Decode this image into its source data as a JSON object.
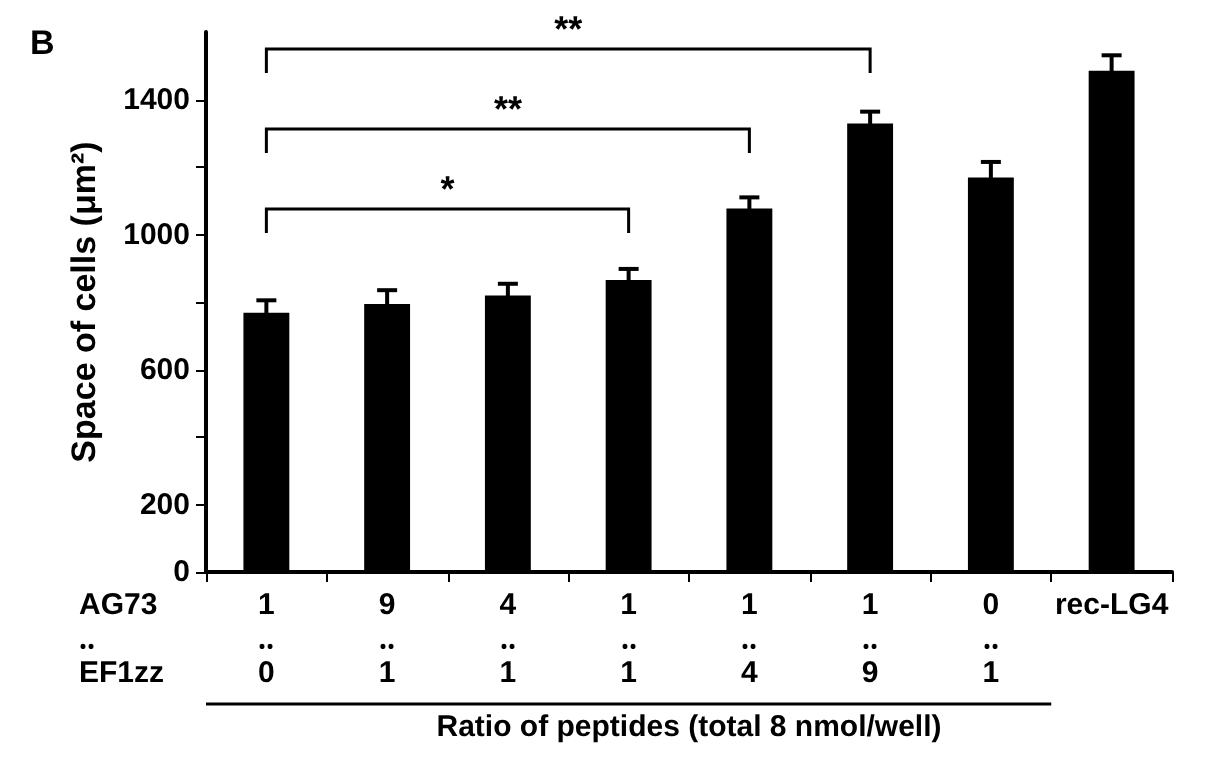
{
  "chart_data": {
    "type": "bar",
    "title": "B",
    "ylabel": "Space of cells (μm²)",
    "xlabel": "Ratio of peptides (total 8 nmol/well)",
    "categories": [
      "1\n‥\n0",
      "9\n‥\n1",
      "4\n‥\n1",
      "1\n‥\n1",
      "1\n‥\n4",
      "1\n‥\n9",
      "0\n‥\n1",
      "rec-LG4"
    ],
    "values": [
      768,
      794,
      819,
      865,
      1077,
      1329,
      1169,
      1485
    ],
    "errors": [
      37,
      41,
      35,
      33,
      33,
      35,
      46,
      46
    ],
    "color": "#000000",
    "ylim": [
      0,
      1600
    ],
    "yticks": [
      0,
      200,
      {
        "value": 400,
        "label": null
      },
      600,
      {
        "value": 800,
        "label": null
      },
      1000,
      {
        "value": 1200,
        "label": null
      },
      1400
    ],
    "grid": false,
    "annotations": [
      "AG73\n‥\nEF1zz",
      "*",
      "**",
      "**"
    ]
  }
}
